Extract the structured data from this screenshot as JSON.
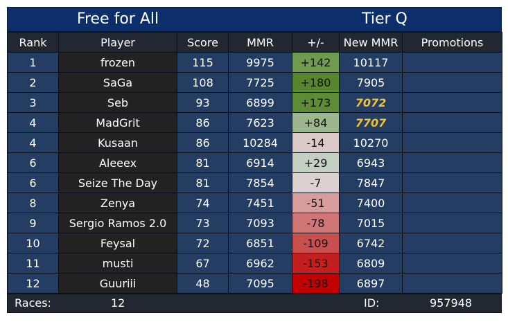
{
  "header": {
    "mode": "Free for All",
    "tier": "Tier Q"
  },
  "columns": [
    "Rank",
    "Player",
    "Score",
    "MMR",
    "+/-",
    "New MMR",
    "Promotions"
  ],
  "rows": [
    {
      "rank": "1",
      "player": "frozen",
      "score": "115",
      "mmr": "9975",
      "delta": "+142",
      "new_mmr": "10117",
      "promo": "",
      "delta_color": "#6f9a50",
      "highlight": false
    },
    {
      "rank": "2",
      "player": "SaGa",
      "score": "108",
      "mmr": "7725",
      "delta": "+180",
      "new_mmr": "7905",
      "promo": "",
      "delta_color": "#58862f",
      "highlight": false
    },
    {
      "rank": "3",
      "player": "Seb",
      "score": "93",
      "mmr": "6899",
      "delta": "+173",
      "new_mmr": "7072",
      "promo": "",
      "delta_color": "#5e8b37",
      "highlight": true
    },
    {
      "rank": "4",
      "player": "MadGrit",
      "score": "86",
      "mmr": "7623",
      "delta": "+84",
      "new_mmr": "7707",
      "promo": "",
      "delta_color": "#9cb78d",
      "highlight": true
    },
    {
      "rank": "4",
      "player": "Kusaan",
      "score": "86",
      "mmr": "10284",
      "delta": "-14",
      "new_mmr": "10270",
      "promo": "",
      "delta_color": "#dcc9ca",
      "highlight": false
    },
    {
      "rank": "6",
      "player": "Aleeex",
      "score": "81",
      "mmr": "6914",
      "delta": "+29",
      "new_mmr": "6943",
      "promo": "",
      "delta_color": "#c6d0c2",
      "highlight": false
    },
    {
      "rank": "6",
      "player": "Seize The Day",
      "score": "81",
      "mmr": "7854",
      "delta": "-7",
      "new_mmr": "7847",
      "promo": "",
      "delta_color": "#dcd1d1",
      "highlight": false
    },
    {
      "rank": "8",
      "player": "Zenya",
      "score": "74",
      "mmr": "7451",
      "delta": "-51",
      "new_mmr": "7400",
      "promo": "",
      "delta_color": "#d79c9c",
      "highlight": false
    },
    {
      "rank": "9",
      "player": "Sergio Ramos 2.0",
      "score": "73",
      "mmr": "7093",
      "delta": "-78",
      "new_mmr": "7015",
      "promo": "",
      "delta_color": "#d17676",
      "highlight": false
    },
    {
      "rank": "10",
      "player": "Feysal",
      "score": "72",
      "mmr": "6851",
      "delta": "-109",
      "new_mmr": "6742",
      "promo": "",
      "delta_color": "#c94e4e",
      "highlight": false
    },
    {
      "rank": "11",
      "player": "musti",
      "score": "67",
      "mmr": "6962",
      "delta": "-153",
      "new_mmr": "6809",
      "promo": "",
      "delta_color": "#c41e1e",
      "highlight": false
    },
    {
      "rank": "12",
      "player": "Guuriii",
      "score": "48",
      "mmr": "7095",
      "delta": "-198",
      "new_mmr": "6897",
      "promo": "",
      "delta_color": "#c20000",
      "highlight": false
    }
  ],
  "footer": {
    "races_label": "Races:",
    "races_value": "12",
    "id_label": "ID:",
    "id_value": "957948"
  }
}
